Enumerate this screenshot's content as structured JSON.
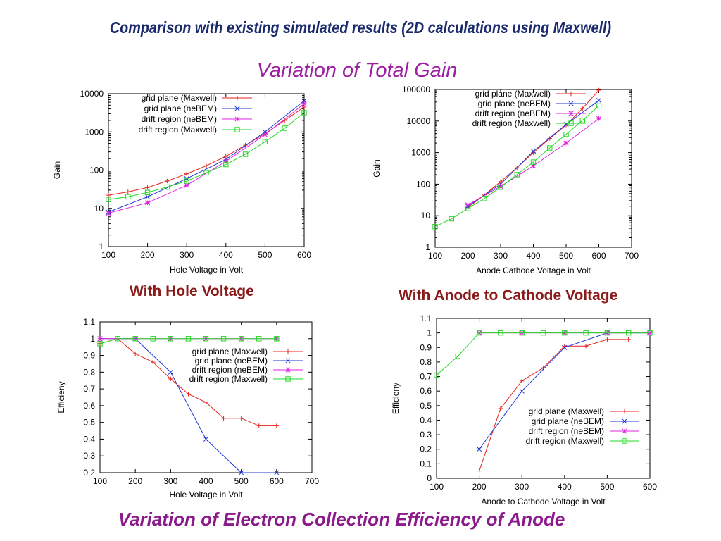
{
  "page": {
    "title": "Comparison with existing simulated results (2D calculations using Maxwell)",
    "subtitle": "Variation of Total Gain",
    "label_hole": "With Hole Voltage",
    "label_anode": "With Anode to Cathode Voltage",
    "bottom_title": "Variation of Electron Collection Efficiency of Anode"
  },
  "colors": {
    "grid_maxwell": "#e8211b",
    "grid_nebem": "#1f35d6",
    "drift_nebem": "#e020e0",
    "drift_maxwell": "#22d822"
  },
  "chart_data": [
    {
      "type": "line",
      "xlabel": "Hole Voltage in Volt",
      "ylabel": "Gain",
      "xlim": [
        100,
        600
      ],
      "ylim": [
        1,
        10000
      ],
      "yscale": "log",
      "xticks": [
        100,
        200,
        300,
        400,
        500,
        600
      ],
      "yticks": [
        1,
        10,
        100,
        1000,
        10000
      ],
      "ytick_labels": [
        "1",
        "10",
        "100",
        "1000",
        "10000"
      ],
      "legend": "top-left",
      "series": [
        {
          "name": "grid plane (Maxwell)",
          "color": "#e8211b",
          "marker": "plus",
          "x": [
            100,
            150,
            200,
            250,
            300,
            350,
            400,
            450,
            500,
            550,
            600
          ],
          "y": [
            22,
            27,
            35,
            52,
            80,
            130,
            230,
            450,
            900,
            2000,
            4500
          ]
        },
        {
          "name": "grid plane (neBEM)",
          "color": "#1f35d6",
          "marker": "cross",
          "x": [
            100,
            200,
            300,
            400,
            500,
            600
          ],
          "y": [
            8,
            20,
            60,
            190,
            1000,
            6500
          ]
        },
        {
          "name": "drift region (neBEM)",
          "color": "#e020e0",
          "marker": "star",
          "x": [
            100,
            200,
            300,
            400,
            500,
            600
          ],
          "y": [
            7.5,
            14,
            40,
            170,
            850,
            5500
          ]
        },
        {
          "name": "drift region (Maxwell)",
          "color": "#22d822",
          "marker": "square",
          "x": [
            100,
            150,
            200,
            250,
            300,
            350,
            400,
            450,
            500,
            550,
            600
          ],
          "y": [
            17,
            20,
            26,
            36,
            52,
            85,
            140,
            260,
            550,
            1250,
            3200
          ]
        }
      ]
    },
    {
      "type": "line",
      "xlabel": "Anode Cathode Voltage in Volt",
      "ylabel": "Gain",
      "xlim": [
        100,
        700
      ],
      "ylim": [
        1,
        100000
      ],
      "yscale": "log",
      "xticks": [
        100,
        200,
        300,
        400,
        500,
        600,
        700
      ],
      "yticks": [
        1,
        10,
        100,
        1000,
        10000,
        100000
      ],
      "ytick_labels": [
        "1",
        "10",
        "100",
        "1000",
        "10000",
        "100000"
      ],
      "legend": "top-left",
      "series": [
        {
          "name": "grid plane (Maxwell)",
          "color": "#e8211b",
          "marker": "plus",
          "x": [
            200,
            250,
            300,
            350,
            400,
            450,
            500,
            550,
            600
          ],
          "y": [
            18,
            45,
            120,
            330,
            1000,
            2800,
            7500,
            25000,
            95000
          ]
        },
        {
          "name": "grid plane (neBEM)",
          "color": "#1f35d6",
          "marker": "cross",
          "x": [
            200,
            300,
            400,
            500,
            600
          ],
          "y": [
            20,
            100,
            1100,
            7800,
            45000
          ]
        },
        {
          "name": "drift region (neBEM)",
          "color": "#e020e0",
          "marker": "star",
          "x": [
            200,
            300,
            400,
            500,
            600
          ],
          "y": [
            22,
            85,
            380,
            2000,
            12000
          ]
        },
        {
          "name": "drift region (Maxwell)",
          "color": "#22d822",
          "marker": "square",
          "x": [
            100,
            150,
            200,
            250,
            300,
            350,
            400,
            450,
            500,
            550,
            600
          ],
          "y": [
            4.5,
            8,
            17,
            35,
            80,
            200,
            500,
            1400,
            3800,
            10500,
            30000
          ]
        }
      ]
    },
    {
      "type": "line",
      "xlabel": "Hole Voltage in Volt",
      "ylabel": "Efficieny",
      "xlim": [
        100,
        700
      ],
      "ylim": [
        0.2,
        1.1
      ],
      "xticks": [
        100,
        200,
        300,
        400,
        500,
        600,
        700
      ],
      "yticks": [
        0.2,
        0.3,
        0.4,
        0.5,
        0.6,
        0.7,
        0.8,
        0.9,
        1,
        1.1
      ],
      "ytick_labels": [
        "0.2",
        "0.3",
        "0.4",
        "0.5",
        "0.6",
        "0.7",
        "0.8",
        "0.9",
        "1",
        "1.1"
      ],
      "legend": "center-right",
      "series": [
        {
          "name": "grid plane (Maxwell)",
          "color": "#e8211b",
          "marker": "plus",
          "x": [
            100,
            150,
            200,
            250,
            300,
            350,
            400,
            450,
            500,
            550,
            600
          ],
          "y": [
            0.97,
            1.0,
            0.91,
            0.86,
            0.76,
            0.67,
            0.62,
            0.525,
            0.525,
            0.48,
            0.48
          ]
        },
        {
          "name": "grid plane (neBEM)",
          "color": "#1f35d6",
          "marker": "cross",
          "x": [
            100,
            200,
            300,
            400,
            500,
            600
          ],
          "y": [
            1.0,
            1.0,
            0.8,
            0.4,
            0.2,
            0.2
          ]
        },
        {
          "name": "drift region (neBEM)",
          "color": "#e020e0",
          "marker": "star",
          "x": [
            100,
            200,
            300,
            400,
            500,
            600
          ],
          "y": [
            1,
            1,
            1,
            1,
            1,
            1
          ]
        },
        {
          "name": "drift region (Maxwell)",
          "color": "#22d822",
          "marker": "square",
          "x": [
            100,
            150,
            200,
            250,
            300,
            350,
            400,
            450,
            500,
            550,
            600
          ],
          "y": [
            0.97,
            1,
            1,
            1,
            1,
            1,
            1,
            1,
            1,
            1,
            1
          ]
        }
      ]
    },
    {
      "type": "line",
      "xlabel": "Anode to Cathode Voltage in Volt",
      "ylabel": "Efficieny",
      "xlim": [
        100,
        600
      ],
      "ylim": [
        0,
        1.1
      ],
      "xticks": [
        100,
        200,
        300,
        400,
        500,
        600
      ],
      "yticks": [
        0,
        0.1,
        0.2,
        0.3,
        0.4,
        0.5,
        0.6,
        0.7,
        0.8,
        0.9,
        1,
        1.1
      ],
      "ytick_labels": [
        "0",
        "0.1",
        "0.2",
        "0.3",
        "0.4",
        "0.5",
        "0.6",
        "0.7",
        "0.8",
        "0.9",
        "1",
        "1.1"
      ],
      "legend": "bottom-right",
      "series": [
        {
          "name": "grid plane (Maxwell)",
          "color": "#e8211b",
          "marker": "plus",
          "x": [
            200,
            250,
            300,
            350,
            400,
            450,
            500,
            550
          ],
          "y": [
            0.05,
            0.48,
            0.67,
            0.76,
            0.91,
            0.91,
            0.955,
            0.955
          ]
        },
        {
          "name": "grid plane (neBEM)",
          "color": "#1f35d6",
          "marker": "cross",
          "x": [
            200,
            300,
            400,
            500,
            600
          ],
          "y": [
            0.2,
            0.6,
            0.9,
            1.0,
            1.0
          ]
        },
        {
          "name": "drift region (neBEM)",
          "color": "#e020e0",
          "marker": "star",
          "x": [
            200,
            300,
            400,
            500,
            600
          ],
          "y": [
            1,
            1,
            1,
            1,
            1
          ]
        },
        {
          "name": "drift region (Maxwell)",
          "color": "#22d822",
          "marker": "square",
          "x": [
            100,
            150,
            200,
            250,
            300,
            350,
            400,
            450,
            500,
            550,
            600
          ],
          "y": [
            0.71,
            0.84,
            1,
            1,
            1,
            1,
            1,
            1,
            1,
            1,
            1
          ]
        }
      ]
    }
  ]
}
